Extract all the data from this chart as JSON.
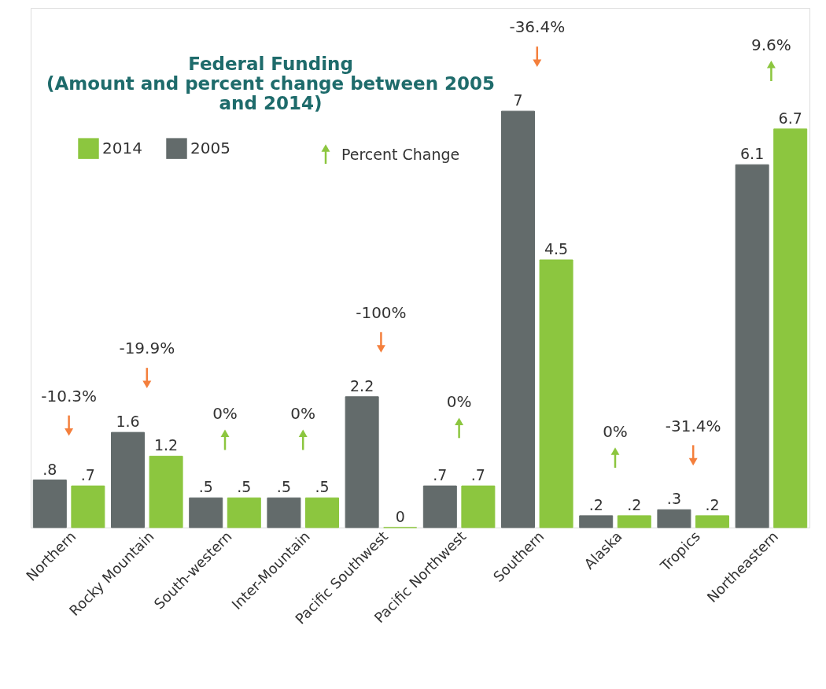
{
  "chart_data": {
    "type": "bar",
    "title": "Federal Funding",
    "subtitle": "(Amount and percent change between 2005 and 2014)",
    "categories": [
      "Northern",
      "Rocky Mountain",
      "South-western",
      "Inter-Mountain",
      "Pacific Southwest",
      "Pacific Northwest",
      "Southern",
      "Alaska",
      "Tropics",
      "Northeastern"
    ],
    "series": [
      {
        "name": "2005",
        "color": "#636b6b",
        "values": [
          0.8,
          1.6,
          0.5,
          0.5,
          2.2,
          0.7,
          7,
          0.2,
          0.3,
          6.1
        ],
        "value_labels": [
          ".8",
          "1.6",
          ".5",
          ".5",
          "2.2",
          ".7",
          "7",
          ".2",
          ".3",
          "6.1"
        ]
      },
      {
        "name": "2014",
        "color": "#8cc63f",
        "values": [
          0.7,
          1.2,
          0.5,
          0.5,
          0,
          0.7,
          4.5,
          0.2,
          0.2,
          6.7
        ],
        "value_labels": [
          ".7",
          "1.2",
          ".5",
          ".5",
          "0",
          ".7",
          "4.5",
          ".2",
          ".2",
          "6.7"
        ]
      }
    ],
    "annotations": [
      "-10.3%",
      "-19.9%",
      "0%",
      "0%",
      "-100%",
      "0%",
      "-36.4%",
      "0%",
      "-31.4%",
      "9.6%",
      "Percent Change"
    ],
    "legend": "top left",
    "grid": false
  }
}
